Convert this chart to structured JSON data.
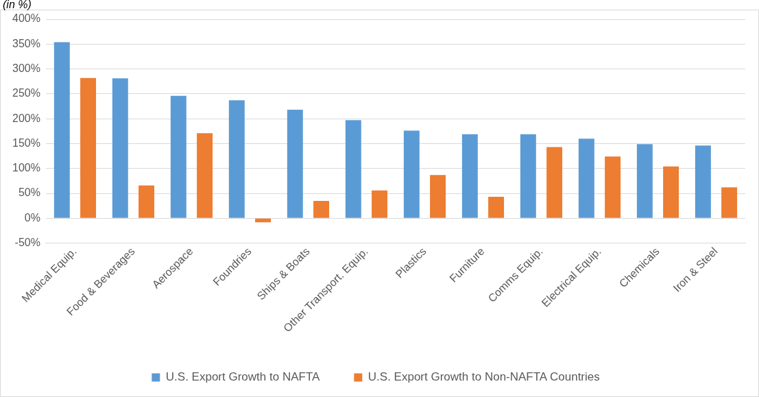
{
  "chart_data": {
    "type": "bar",
    "ylabel": "(in %)",
    "categories": [
      "Medical Equip.",
      "Food & Beverages",
      "Aerospace",
      "Foundries",
      "Ships & Boats",
      "Other Transport. Equip.",
      "Plastics",
      "Furniture",
      "Comms Equip.",
      "Electrical Equip.",
      "Chemicals",
      "Iron & Steel"
    ],
    "series": [
      {
        "name": "U.S. Export Growth to NAFTA",
        "color": "#5b9bd5",
        "values": [
          354,
          281,
          246,
          237,
          218,
          197,
          176,
          169,
          169,
          160,
          149,
          146
        ]
      },
      {
        "name": "U.S. Export Growth to Non-NAFTA Countries",
        "color": "#ed7d31",
        "values": [
          282,
          66,
          171,
          -8,
          35,
          56,
          87,
          43,
          143,
          124,
          104,
          62
        ]
      }
    ],
    "ylim": [
      -50,
      400
    ],
    "yticks": [
      {
        "value": -50,
        "label": "-50%"
      },
      {
        "value": 0,
        "label": "0%"
      },
      {
        "value": 50,
        "label": "50%"
      },
      {
        "value": 100,
        "label": "100%"
      },
      {
        "value": 150,
        "label": "150%"
      },
      {
        "value": 200,
        "label": "200%"
      },
      {
        "value": 250,
        "label": "250%"
      },
      {
        "value": 300,
        "label": "300%"
      },
      {
        "value": 350,
        "label": "350%"
      },
      {
        "value": 400,
        "label": "400%"
      }
    ],
    "grid": "y",
    "legend": "bottom"
  }
}
